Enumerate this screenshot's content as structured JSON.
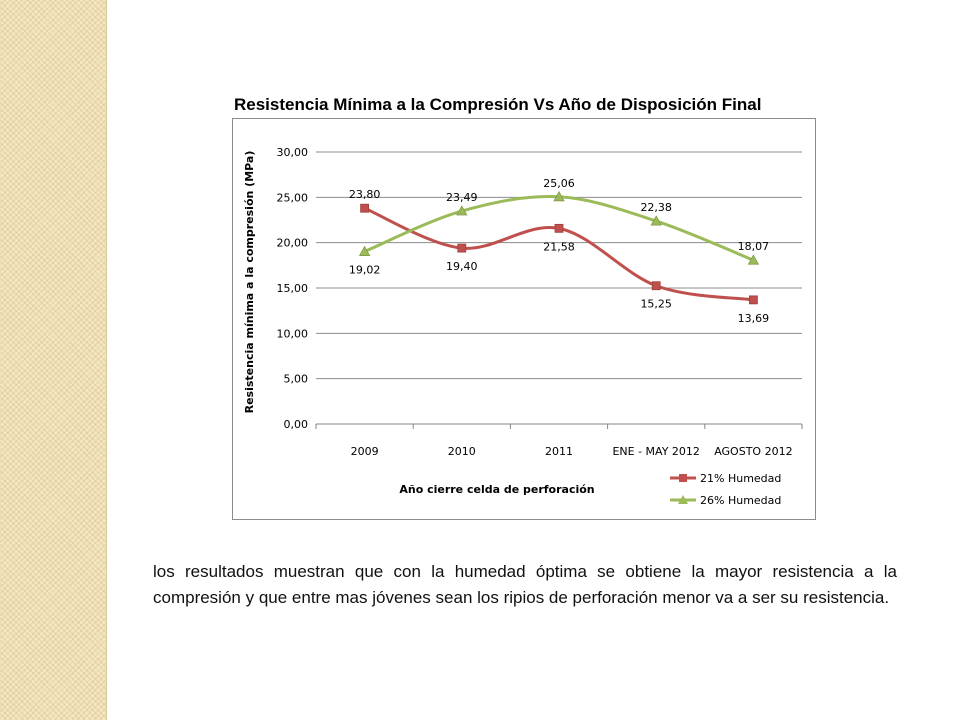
{
  "slide": {
    "title": "Resistencia Mínima a la Compresión Vs Año de Disposición Final",
    "body_text": "los resultados muestran que con la humedad óptima se obtiene la mayor resistencia a la compresión y que entre mas jóvenes sean los ripios de perforación menor va a ser su resistencia."
  },
  "chart_data": {
    "type": "line",
    "title": "",
    "xlabel": "Año cierre celda de perforación",
    "ylabel": "Resistencia mínima a la compresión (MPa)",
    "categories": [
      "2009",
      "2010",
      "2011",
      "ENE - MAY 2012",
      "AGOSTO 2012"
    ],
    "ylim": [
      0,
      30
    ],
    "yticks": [
      "0,00",
      "5,00",
      "10,00",
      "15,00",
      "20,00",
      "25,00",
      "30,00"
    ],
    "grid": true,
    "legend": "bottom-right",
    "series": [
      {
        "name": "21% Humedad",
        "values": [
          23.8,
          19.4,
          21.58,
          15.25,
          13.69
        ],
        "labels": [
          "23,80",
          "19,40",
          "21,58",
          "15,25",
          "13,69"
        ],
        "color": "#c0504d",
        "marker": "square"
      },
      {
        "name": "26% Humedad",
        "values": [
          19.02,
          23.49,
          25.06,
          22.38,
          18.07
        ],
        "labels": [
          "19,02",
          "23,49",
          "25,06",
          "22,38",
          "18,07"
        ],
        "color": "#9bbb59",
        "marker": "triangle"
      }
    ]
  }
}
